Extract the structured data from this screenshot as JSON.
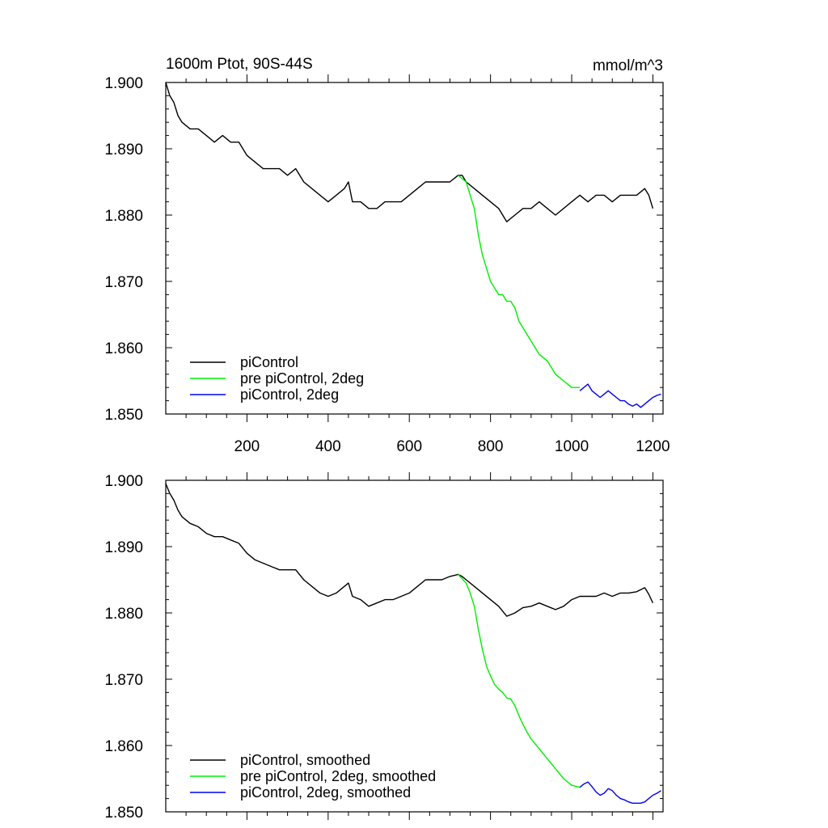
{
  "chart_data": [
    {
      "type": "line",
      "title": "1600m Ptot, 90S-44S",
      "units": "mmol/m^3",
      "xlim": [
        0,
        1225
      ],
      "ylim": [
        1.85,
        1.9
      ],
      "xticks": [
        200,
        400,
        600,
        800,
        1000,
        1200
      ],
      "xtick_labels": [
        "200",
        "400",
        "600",
        "800",
        "1000",
        "1200"
      ],
      "yticks": [
        1.85,
        1.86,
        1.87,
        1.88,
        1.89,
        1.9
      ],
      "ytick_labels": [
        "1.850",
        "1.860",
        "1.870",
        "1.880",
        "1.890",
        "1.900"
      ],
      "legend_position": "bottom-left",
      "series": [
        {
          "name": "piControl",
          "color": "#000000",
          "x": [
            0,
            10,
            20,
            30,
            40,
            60,
            80,
            100,
            120,
            140,
            160,
            180,
            200,
            220,
            240,
            260,
            280,
            300,
            320,
            340,
            360,
            380,
            400,
            420,
            440,
            450,
            460,
            480,
            500,
            520,
            540,
            560,
            580,
            600,
            620,
            640,
            660,
            680,
            700,
            720,
            730,
            740,
            760,
            780,
            800,
            820,
            840,
            860,
            880,
            900,
            920,
            940,
            960,
            980,
            1000,
            1020,
            1040,
            1060,
            1080,
            1100,
            1120,
            1140,
            1160,
            1180,
            1190,
            1200
          ],
          "y": [
            1.9,
            1.898,
            1.897,
            1.895,
            1.894,
            1.893,
            1.893,
            1.892,
            1.891,
            1.892,
            1.891,
            1.891,
            1.889,
            1.888,
            1.887,
            1.887,
            1.887,
            1.886,
            1.887,
            1.885,
            1.884,
            1.883,
            1.882,
            1.883,
            1.884,
            1.885,
            1.882,
            1.882,
            1.881,
            1.881,
            1.882,
            1.882,
            1.882,
            1.883,
            1.884,
            1.885,
            1.885,
            1.885,
            1.885,
            1.886,
            1.886,
            1.885,
            1.884,
            1.883,
            1.882,
            1.881,
            1.879,
            1.88,
            1.881,
            1.881,
            1.882,
            1.881,
            1.88,
            1.881,
            1.882,
            1.883,
            1.882,
            1.883,
            1.883,
            1.882,
            1.883,
            1.883,
            1.883,
            1.884,
            1.883,
            1.881
          ]
        },
        {
          "name": "pre piControl, 2deg",
          "color": "#00ee00",
          "x": [
            720,
            740,
            750,
            760,
            770,
            780,
            790,
            800,
            810,
            820,
            830,
            840,
            850,
            860,
            870,
            880,
            890,
            900,
            920,
            940,
            960,
            980,
            1000,
            1020
          ],
          "y": [
            1.886,
            1.885,
            1.883,
            1.881,
            1.877,
            1.874,
            1.872,
            1.87,
            1.869,
            1.868,
            1.868,
            1.867,
            1.867,
            1.866,
            1.864,
            1.863,
            1.862,
            1.861,
            1.859,
            1.858,
            1.856,
            1.855,
            1.854,
            1.854
          ]
        },
        {
          "name": "piControl, 2deg",
          "color": "#0000ee",
          "x": [
            1020,
            1030,
            1040,
            1050,
            1060,
            1070,
            1080,
            1090,
            1100,
            1110,
            1120,
            1130,
            1140,
            1150,
            1160,
            1170,
            1180,
            1190,
            1200,
            1210,
            1220
          ],
          "y": [
            1.8535,
            1.854,
            1.8545,
            1.8535,
            1.853,
            1.8525,
            1.853,
            1.8535,
            1.853,
            1.8525,
            1.852,
            1.852,
            1.8515,
            1.8512,
            1.8515,
            1.851,
            1.8515,
            1.852,
            1.8525,
            1.8528,
            1.853
          ]
        }
      ]
    },
    {
      "type": "line",
      "title": "",
      "units": "",
      "xlim": [
        0,
        1225
      ],
      "ylim": [
        1.85,
        1.9
      ],
      "xticks": [
        200,
        400,
        600,
        800,
        1000,
        1200
      ],
      "xtick_labels": [],
      "yticks": [
        1.85,
        1.86,
        1.87,
        1.88,
        1.89,
        1.9
      ],
      "ytick_labels": [
        "1.850",
        "1.860",
        "1.870",
        "1.880",
        "1.890",
        "1.900"
      ],
      "legend_position": "bottom-left",
      "series": [
        {
          "name": "piControl, smoothed",
          "color": "#000000",
          "x": [
            0,
            10,
            20,
            30,
            40,
            60,
            80,
            100,
            120,
            140,
            160,
            180,
            200,
            220,
            240,
            260,
            280,
            300,
            320,
            340,
            360,
            380,
            400,
            420,
            440,
            450,
            460,
            480,
            500,
            520,
            540,
            560,
            580,
            600,
            620,
            640,
            660,
            680,
            700,
            720,
            730,
            740,
            760,
            780,
            800,
            820,
            840,
            860,
            880,
            900,
            920,
            940,
            960,
            980,
            1000,
            1020,
            1040,
            1060,
            1080,
            1100,
            1120,
            1140,
            1160,
            1180,
            1190,
            1200
          ],
          "y": [
            1.8995,
            1.898,
            1.897,
            1.8955,
            1.8945,
            1.8935,
            1.893,
            1.892,
            1.8915,
            1.8915,
            1.891,
            1.8905,
            1.889,
            1.888,
            1.8875,
            1.887,
            1.8865,
            1.8865,
            1.8865,
            1.885,
            1.884,
            1.883,
            1.8825,
            1.883,
            1.884,
            1.8845,
            1.8825,
            1.882,
            1.881,
            1.8815,
            1.882,
            1.882,
            1.8825,
            1.883,
            1.884,
            1.885,
            1.885,
            1.885,
            1.8855,
            1.8858,
            1.8855,
            1.885,
            1.884,
            1.883,
            1.882,
            1.881,
            1.8795,
            1.88,
            1.8808,
            1.881,
            1.8815,
            1.881,
            1.8805,
            1.881,
            1.882,
            1.8825,
            1.8825,
            1.8825,
            1.883,
            1.8825,
            1.883,
            1.883,
            1.8832,
            1.8838,
            1.8828,
            1.8815
          ]
        },
        {
          "name": "pre piControl, 2deg, smoothed",
          "color": "#00ee00",
          "x": [
            720,
            740,
            750,
            760,
            770,
            780,
            790,
            800,
            810,
            820,
            830,
            840,
            850,
            860,
            870,
            880,
            890,
            900,
            920,
            940,
            960,
            980,
            1000,
            1020
          ],
          "y": [
            1.8858,
            1.8845,
            1.883,
            1.881,
            1.8775,
            1.8745,
            1.872,
            1.8705,
            1.8692,
            1.8685,
            1.868,
            1.8672,
            1.867,
            1.866,
            1.8645,
            1.8632,
            1.862,
            1.861,
            1.8595,
            1.858,
            1.8565,
            1.855,
            1.854,
            1.8537
          ]
        },
        {
          "name": "piControl, 2deg, smoothed",
          "color": "#0000ee",
          "x": [
            1020,
            1030,
            1040,
            1050,
            1060,
            1070,
            1080,
            1090,
            1100,
            1110,
            1120,
            1130,
            1140,
            1150,
            1160,
            1170,
            1180,
            1190,
            1200,
            1210,
            1220
          ],
          "y": [
            1.8537,
            1.8542,
            1.8545,
            1.8538,
            1.853,
            1.8525,
            1.8528,
            1.8535,
            1.8532,
            1.8525,
            1.852,
            1.8518,
            1.8515,
            1.8513,
            1.8513,
            1.8513,
            1.8515,
            1.852,
            1.8525,
            1.8528,
            1.8532
          ]
        }
      ]
    }
  ]
}
